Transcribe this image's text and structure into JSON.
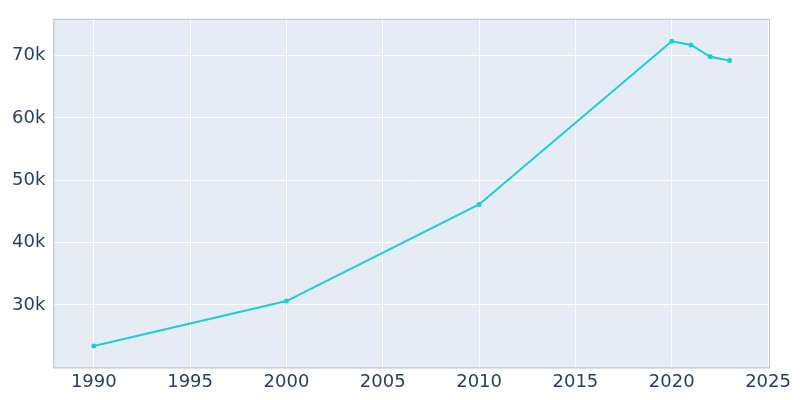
{
  "chart_data": {
    "type": "line",
    "x": [
      1990,
      2000,
      2010,
      2020,
      2021,
      2022,
      2023
    ],
    "values": [
      23400,
      30600,
      46100,
      72300,
      71700,
      69800,
      69200
    ],
    "color": "#1ccfcf",
    "marker": "circle",
    "xlim": [
      1987.9,
      2025.1
    ],
    "xticks": [
      1990,
      1995,
      2000,
      2005,
      2010,
      2015,
      2020,
      2025
    ],
    "ylim": [
      19800,
      75900
    ],
    "yticks": [
      {
        "value": 30000,
        "label": "30k"
      },
      {
        "value": 40000,
        "label": "40k"
      },
      {
        "value": 50000,
        "label": "50k"
      },
      {
        "value": 60000,
        "label": "60k"
      },
      {
        "value": 70000,
        "label": "70k"
      }
    ],
    "grid": true
  }
}
